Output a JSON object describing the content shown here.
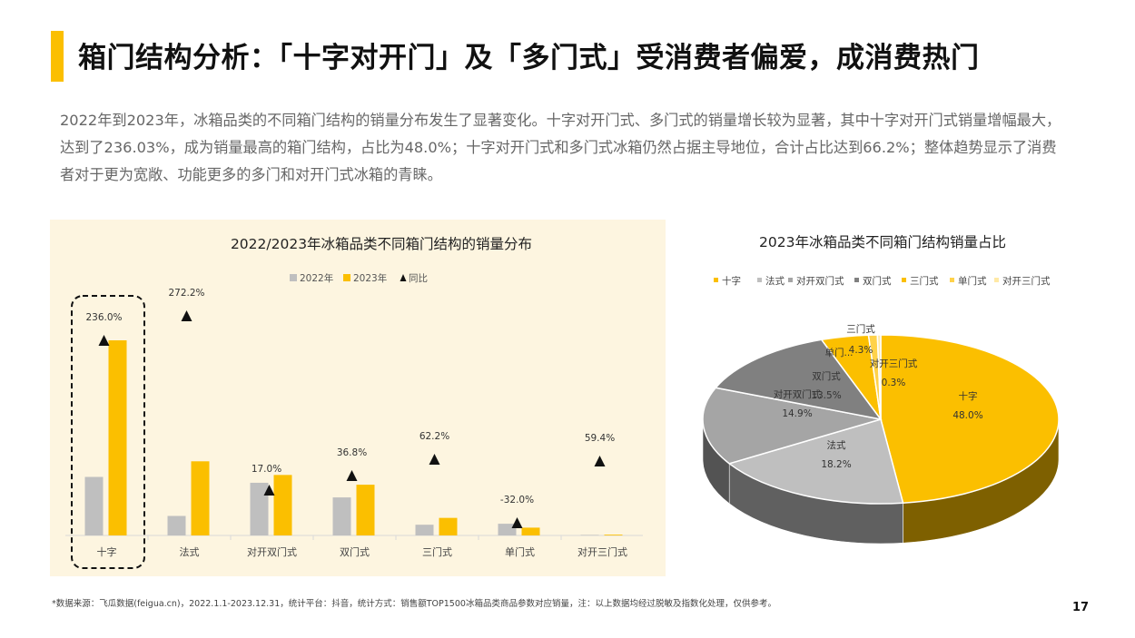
{
  "header": {
    "title": "箱门结构分析：「十字对开门」及「多门式」受消费者偏爱，成消费热门",
    "description": "2022年到2023年，冰箱品类的不同箱门结构的销量分布发生了显著变化。十字对开门式、多门式的销量增长较为显著，其中十字对开门式销量增幅最大，达到了236.03%，成为销量最高的箱门结构，占比为48.0%；十字对开门式和多门式冰箱仍然占据主导地位，合计占比达到66.2%；整体趋势显示了消费者对于更为宽敞、功能更多的多门和对开门式冰箱的青睐。"
  },
  "footer": {
    "source": "*数据来源：飞瓜数据(feigua.cn)，2022.1.1-2023.12.31，统计平台：抖音，统计方式：销售额TOP1500冰箱品类商品参数对应销量，注：以上数据均经过脱敏及指数化处理，仅供参考。",
    "page_number": "17"
  },
  "chart_data": [
    {
      "type": "bar",
      "title": "2022/2023年冰箱品类不同箱门结构的销量分布",
      "categories": [
        "十字",
        "法式",
        "对开双门式",
        "双门式",
        "三门式",
        "单门式",
        "对开三门式"
      ],
      "series": [
        {
          "name": "2022年",
          "color": "#bfbfbf",
          "values": [
            30,
            10,
            27,
            19.5,
            5.5,
            6,
            0.1
          ]
        },
        {
          "name": "2023年",
          "color": "#fbbf00",
          "values": [
            100,
            38,
            31,
            26,
            9,
            4,
            0.4
          ]
        }
      ],
      "growth": {
        "name": "同比",
        "marker": "triangle",
        "values": [
          236.0,
          272.2,
          17.0,
          36.8,
          62.2,
          -32.0,
          59.4
        ],
        "labels": [
          "236.0%",
          "272.2%",
          "17.0%",
          "36.8%",
          "62.2%",
          "-32.0%",
          "59.4%"
        ]
      },
      "highlight_category": "十字",
      "legend_position": "top",
      "grid": false
    },
    {
      "type": "pie",
      "style": "3d",
      "title": "2023年冰箱品类不同箱门结构销量占比",
      "legend_position": "top",
      "slices": [
        {
          "label": "十字",
          "value": 48.0,
          "value_label": "48.0%",
          "legend": "十字",
          "color": "#fbbf00"
        },
        {
          "label": "法式",
          "value": 18.2,
          "value_label": "18.2%",
          "legend": "法式",
          "color": "#bfbfbf"
        },
        {
          "label": "对开双门式",
          "value": 14.9,
          "value_label": "14.9%",
          "legend": "对开双门式",
          "color": "#a5a5a5"
        },
        {
          "label": "双门式",
          "value": 13.5,
          "value_label": "13.5%",
          "legend": "双门式",
          "color": "#808080"
        },
        {
          "label": "三门式",
          "value": 4.3,
          "value_label": "4.3%",
          "legend": "三门式",
          "color": "#fbbf00"
        },
        {
          "label": "单门...",
          "value": 0.8,
          "value_label": "",
          "legend": "单门式",
          "color": "#ffd24a"
        },
        {
          "label": "对开三门式",
          "value": 0.3,
          "value_label": "0.3%",
          "legend": "对开三门式",
          "color": "#ffe9a6"
        }
      ]
    }
  ]
}
